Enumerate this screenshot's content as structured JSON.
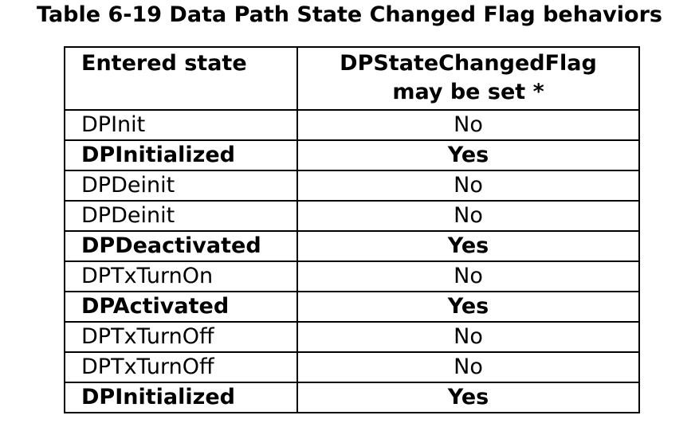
{
  "caption": "Table 6-19 Data Path State Changed Flag behaviors",
  "table": {
    "headers": {
      "col1": "Entered state",
      "col2_line1": "DPStateChangedFlag",
      "col2_line2": "may be set *"
    },
    "rows": [
      {
        "state": "DPInit",
        "flag": "No",
        "bold": false
      },
      {
        "state": "DPInitialized",
        "flag": "Yes",
        "bold": true
      },
      {
        "state": "DPDeinit",
        "flag": "No",
        "bold": false
      },
      {
        "state": "DPDeinit",
        "flag": "No",
        "bold": false
      },
      {
        "state": "DPDeactivated",
        "flag": "Yes",
        "bold": true
      },
      {
        "state": "DPTxTurnOn",
        "flag": "No",
        "bold": false
      },
      {
        "state": "DPActivated",
        "flag": "Yes",
        "bold": true
      },
      {
        "state": "DPTxTurnOff",
        "flag": "No",
        "bold": false
      },
      {
        "state": "DPTxTurnOff",
        "flag": "No",
        "bold": false
      },
      {
        "state": "DPInitialized",
        "flag": "Yes",
        "bold": true
      }
    ]
  }
}
